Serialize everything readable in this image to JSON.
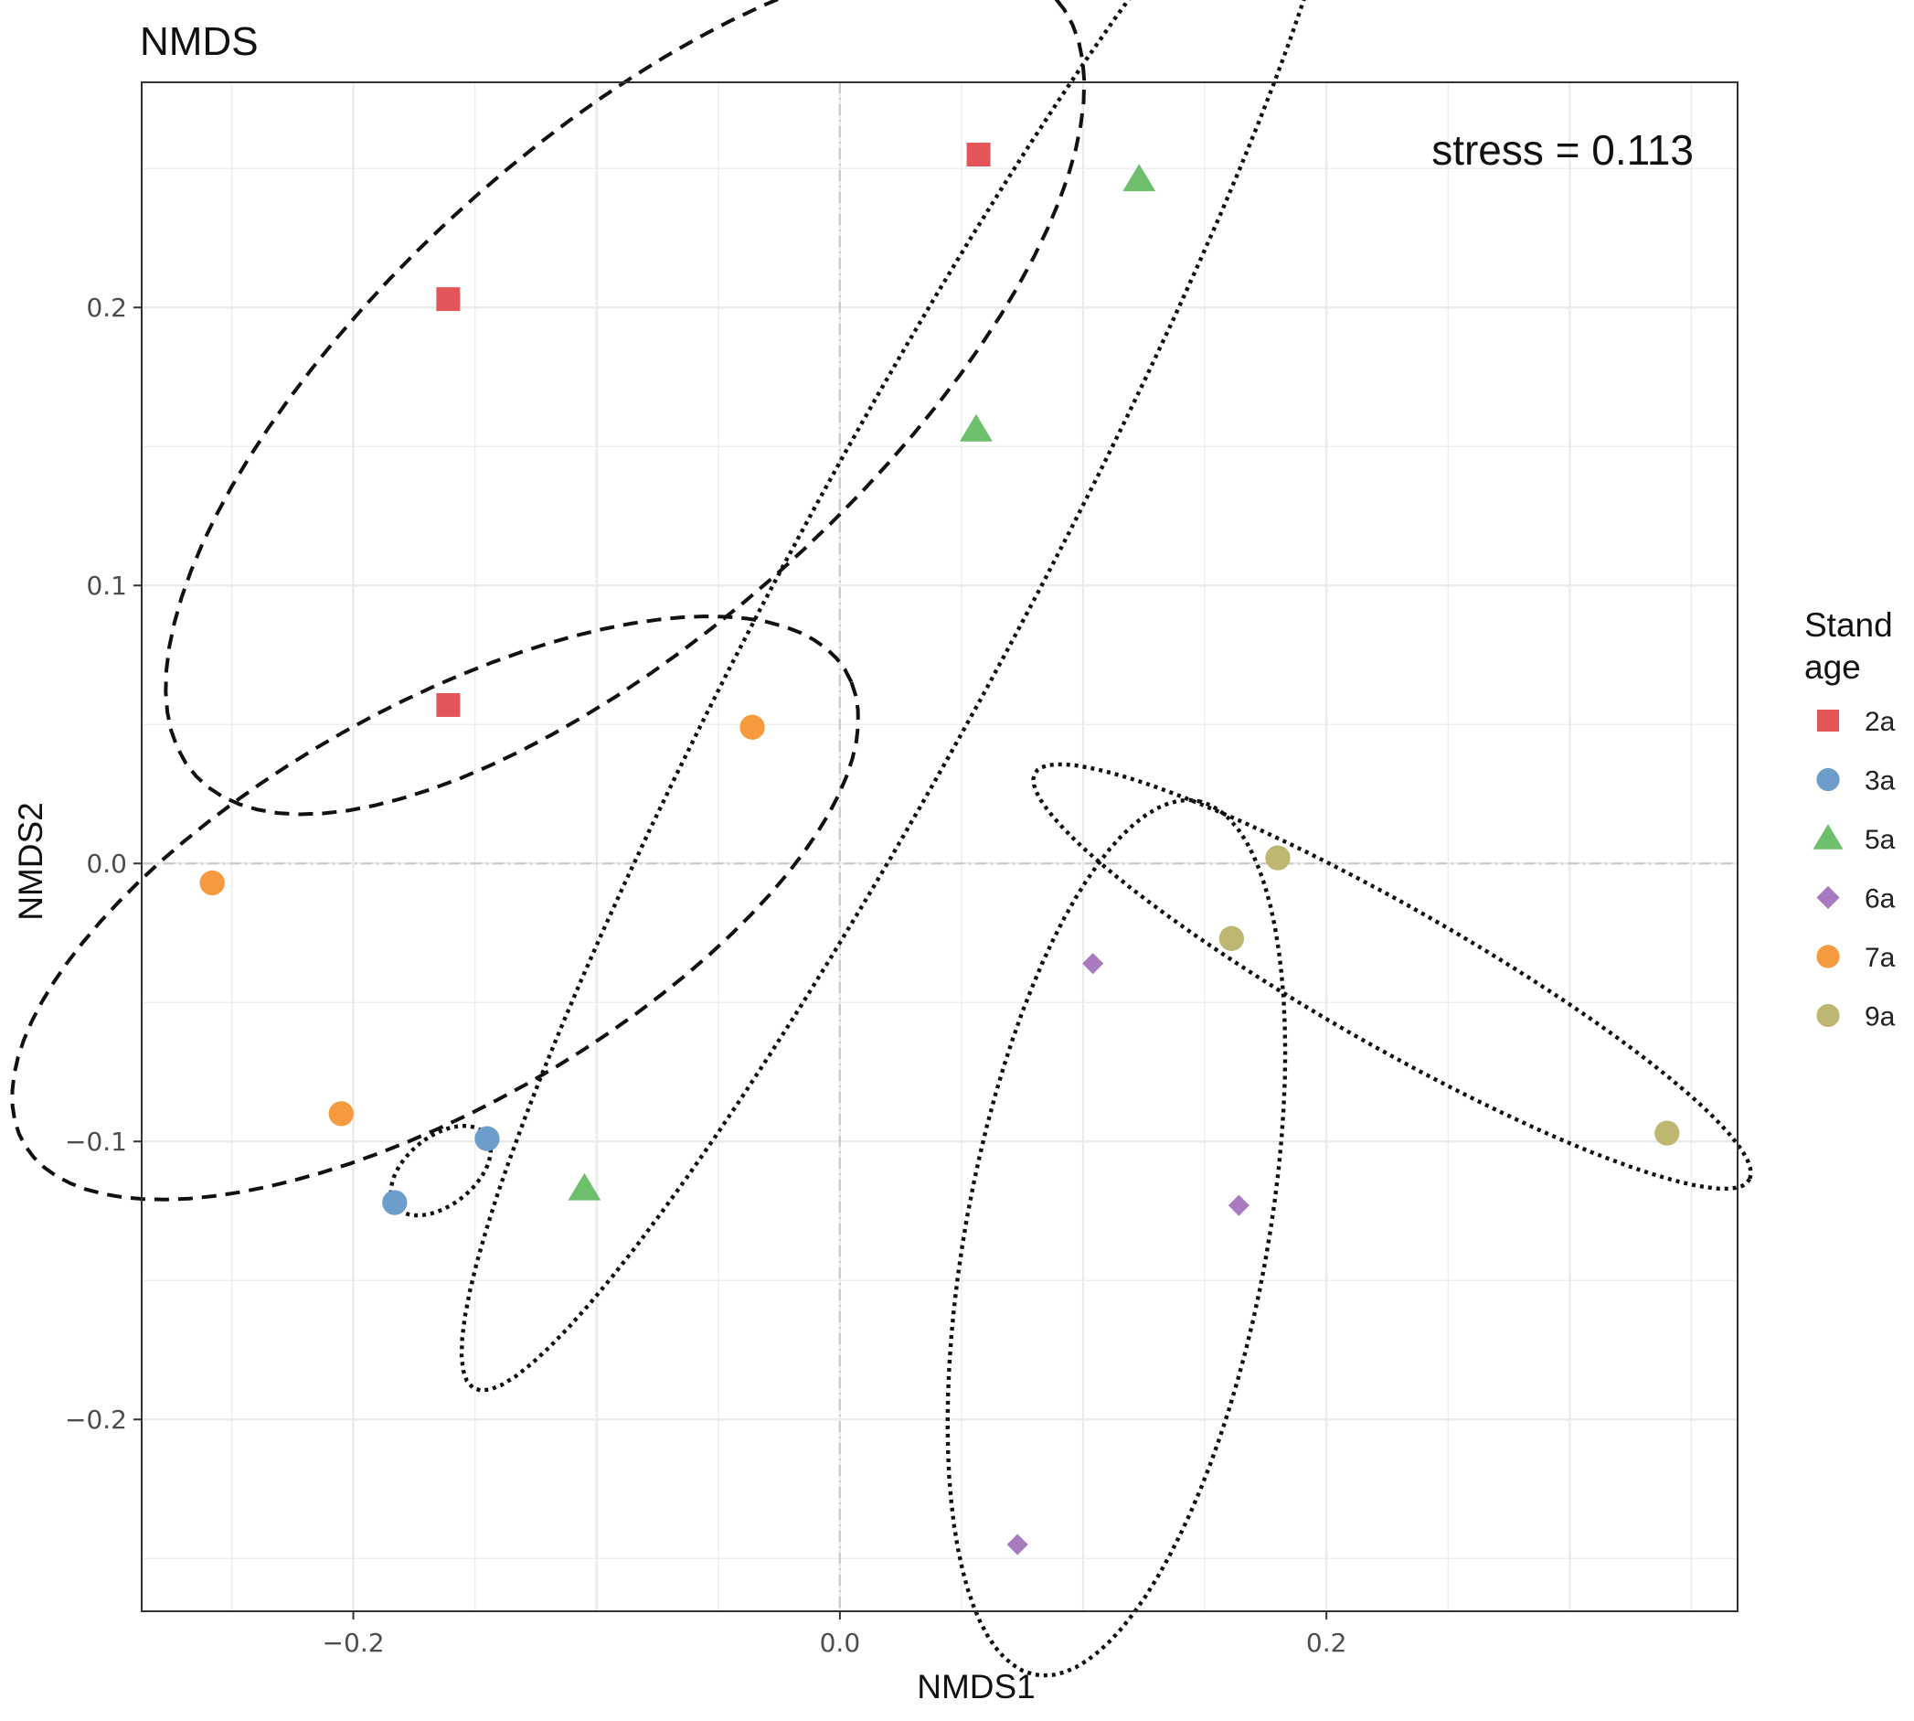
{
  "chart_data": {
    "type": "scatter",
    "title": "NMDS",
    "xlabel": "NMDS1",
    "ylabel": "NMDS2",
    "xlim": [
      -0.287,
      0.369
    ],
    "ylim": [
      -0.269,
      0.281
    ],
    "x_ticks": [
      -0.2,
      0.0,
      0.2
    ],
    "x_tick_labels": [
      "−0.2",
      "0.0",
      "0.2"
    ],
    "y_ticks": [
      -0.2,
      -0.1,
      0.0,
      0.1,
      0.2
    ],
    "y_tick_labels": [
      "−0.2",
      "−0.1",
      "0.0",
      "0.1",
      "0.2"
    ],
    "grid": true,
    "reference_lines": {
      "x": 0,
      "y": 0
    },
    "annotation": "stress = 0.113",
    "legend": {
      "title": [
        "Stand",
        "age"
      ],
      "position": "right"
    },
    "series": [
      {
        "name": "2a",
        "shape": "square",
        "color": "#E4555A",
        "ellipse_style": "dashed",
        "points": [
          [
            0.057,
            0.255
          ],
          [
            -0.161,
            0.203
          ],
          [
            -0.161,
            0.057
          ]
        ]
      },
      {
        "name": "3a",
        "shape": "circle",
        "color": "#6C9DCB",
        "ellipse_style": "dotted",
        "points": [
          [
            -0.145,
            -0.099
          ],
          [
            -0.183,
            -0.122
          ]
        ]
      },
      {
        "name": "5a",
        "shape": "triangle",
        "color": "#6DBF6C",
        "ellipse_style": "dotted",
        "points": [
          [
            0.123,
            0.246
          ],
          [
            0.056,
            0.156
          ],
          [
            -0.105,
            -0.117
          ]
        ]
      },
      {
        "name": "6a",
        "shape": "diamond",
        "color": "#A87BC0",
        "ellipse_style": "dotted",
        "points": [
          [
            0.104,
            -0.036
          ],
          [
            0.164,
            -0.123
          ],
          [
            0.073,
            -0.245
          ]
        ]
      },
      {
        "name": "7a",
        "shape": "circle",
        "color": "#F59A3F",
        "ellipse_style": "dashed",
        "points": [
          [
            -0.036,
            0.049
          ],
          [
            -0.258,
            -0.007
          ],
          [
            -0.205,
            -0.09
          ]
        ]
      },
      {
        "name": "9a",
        "shape": "circle",
        "color": "#BDB772",
        "ellipse_style": "dotted",
        "points": [
          [
            0.18,
            0.002
          ],
          [
            0.161,
            -0.027
          ],
          [
            0.34,
            -0.097
          ]
        ]
      }
    ]
  }
}
